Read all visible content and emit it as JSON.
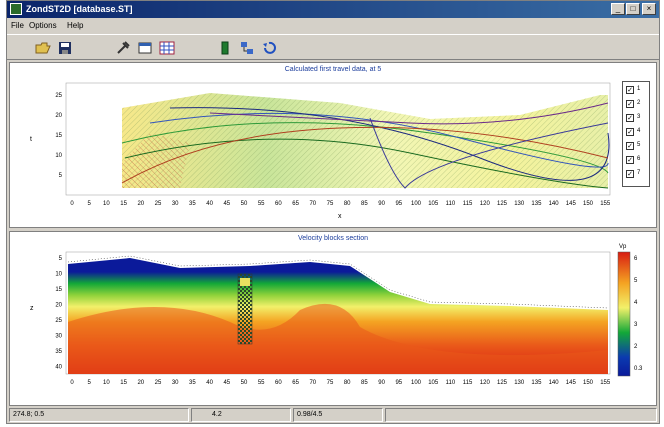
{
  "window": {
    "title": "ZondST2D [database.ST]",
    "min_label": "_",
    "max_label": "□",
    "close_label": "×"
  },
  "menu": [
    {
      "label": "File"
    },
    {
      "label": "Options"
    },
    {
      "label": "Help"
    }
  ],
  "toolbar": {
    "icons": [
      "open-folder-icon",
      "save-icon",
      "tools-icon",
      "window-icon",
      "grid-chart-icon",
      "green-block-icon",
      "network-icon",
      "undo-icon"
    ]
  },
  "upper_plot": {
    "title": "Calculated first travel data, at 5",
    "ylabel": "t",
    "xlabel": "x",
    "yticks": [
      "25",
      "20",
      "15",
      "10",
      "5"
    ],
    "xticks": [
      "0",
      "5",
      "10",
      "15",
      "20",
      "25",
      "30",
      "35",
      "40",
      "45",
      "50",
      "55",
      "60",
      "65",
      "70",
      "75",
      "80",
      "85",
      "90",
      "95",
      "100",
      "105",
      "110",
      "115",
      "120",
      "125",
      "130",
      "135",
      "140",
      "145",
      "150",
      "155"
    ]
  },
  "legend": {
    "items": [
      {
        "label": "1",
        "checked": true
      },
      {
        "label": "2",
        "checked": true
      },
      {
        "label": "3",
        "checked": true
      },
      {
        "label": "4",
        "checked": true
      },
      {
        "label": "5",
        "checked": true
      },
      {
        "label": "6",
        "checked": true
      },
      {
        "label": "7",
        "checked": true
      }
    ]
  },
  "lower_plot": {
    "title": "Velocity blocks section",
    "ylabel": "z",
    "yticks": [
      "5",
      "10",
      "15",
      "20",
      "25",
      "30",
      "35",
      "40"
    ],
    "xticks": [
      "0",
      "5",
      "10",
      "15",
      "20",
      "25",
      "30",
      "35",
      "40",
      "45",
      "50",
      "55",
      "60",
      "65",
      "70",
      "75",
      "80",
      "85",
      "90",
      "95",
      "100",
      "105",
      "110",
      "115",
      "120",
      "125",
      "130",
      "135",
      "140",
      "145",
      "150",
      "155"
    ],
    "colorbar": {
      "unit": "Vp",
      "ticks": [
        "6",
        "5",
        "4",
        "3",
        "2",
        "0.3"
      ],
      "colors": {
        "high": "#d81c12",
        "mid_high": "#f4a322",
        "mid": "#f2f06a",
        "mid_low": "#13a838",
        "low": "#0b1a9a"
      }
    }
  },
  "status": {
    "cell1": "274.8; 0.5",
    "cell2": "4.2",
    "cell3": "0.98/4.5"
  }
}
